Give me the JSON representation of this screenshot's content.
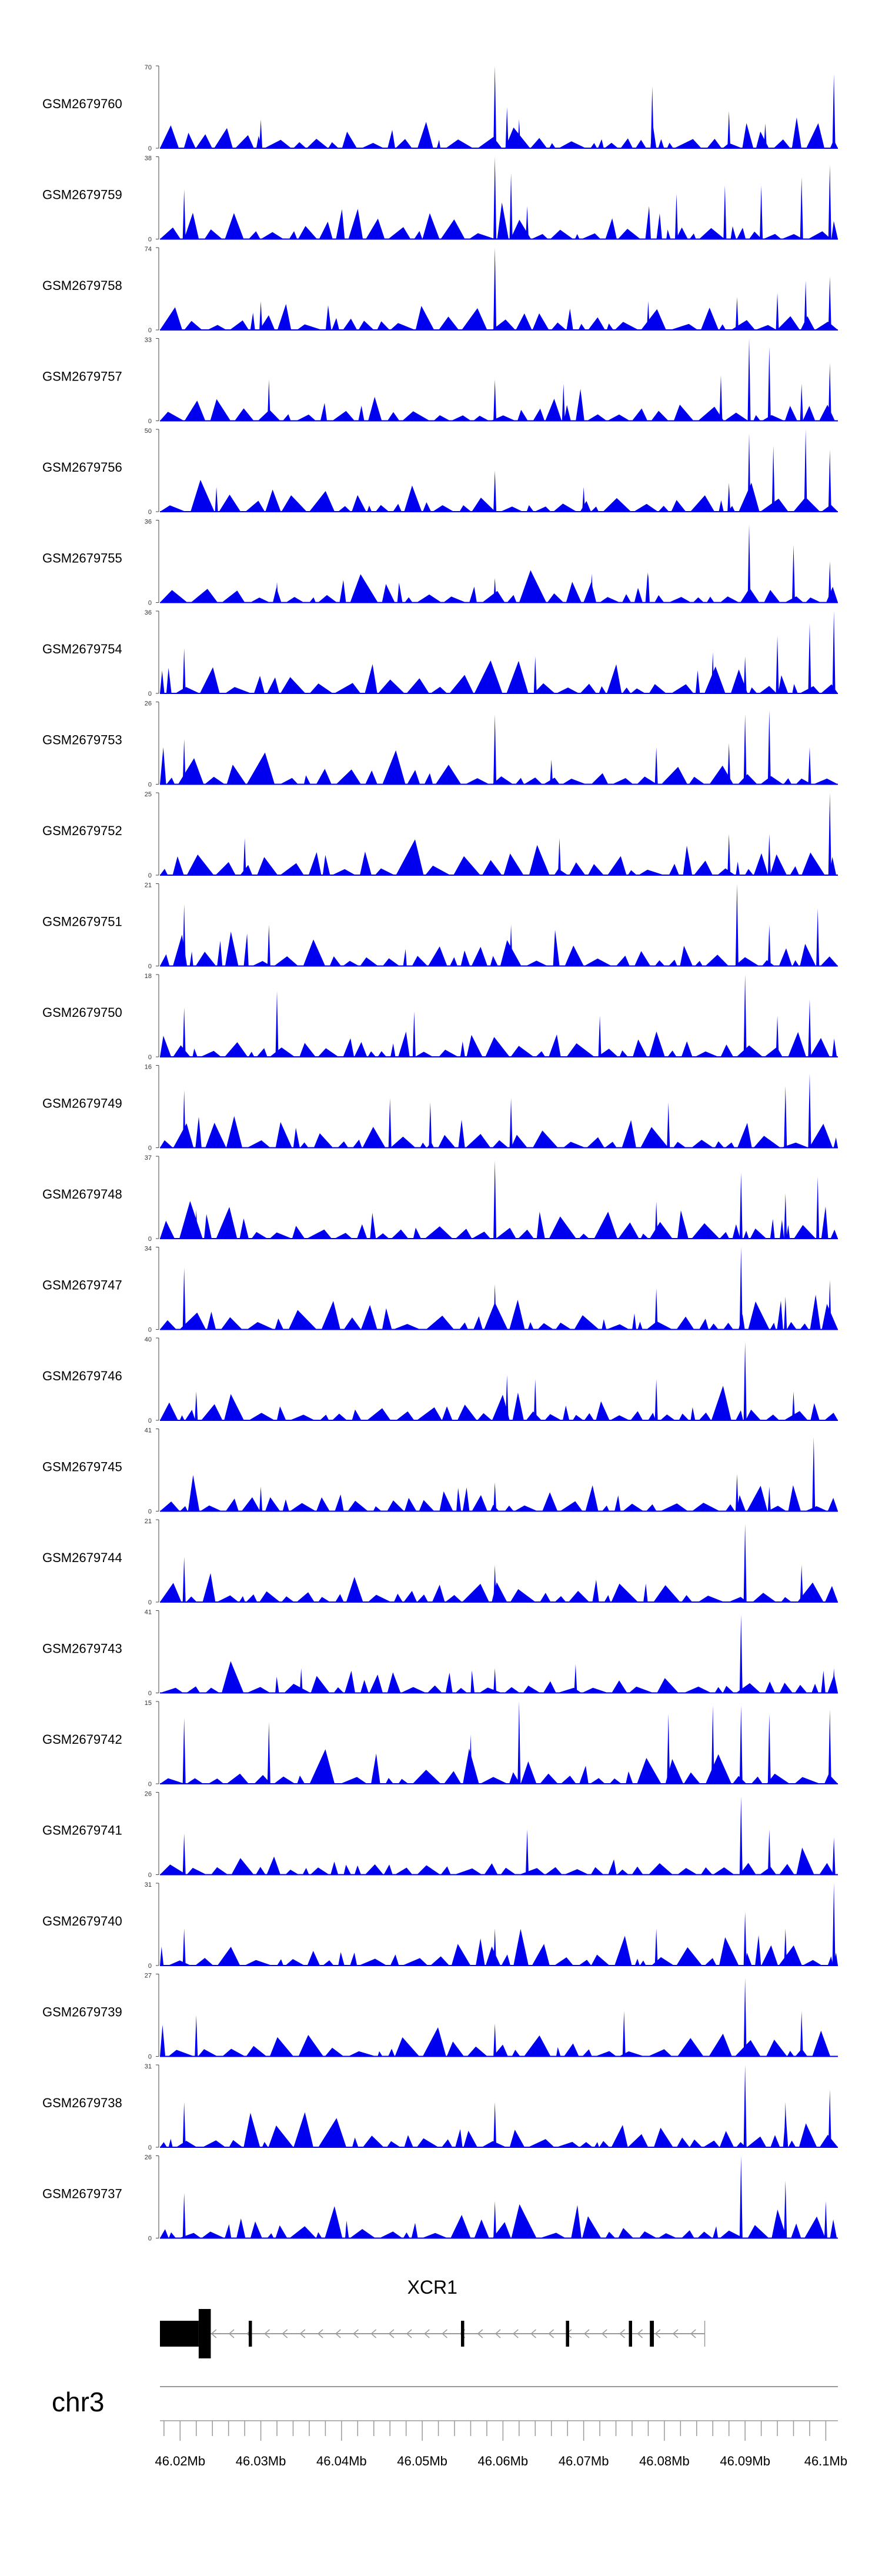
{
  "chart_data": {
    "type": "area",
    "chromosome": "chr3",
    "xlim": [
      46017500,
      46101500
    ],
    "x_ticks": [
      46020000,
      46030000,
      46040000,
      46050000,
      46060000,
      46070000,
      46080000,
      46090000,
      46100000
    ],
    "x_tick_labels": [
      "46.02Mb",
      "46.03Mb",
      "46.04Mb",
      "46.05Mb",
      "46.06Mb",
      "46.07Mb",
      "46.08Mb",
      "46.09Mb",
      "46.1Mb"
    ],
    "tracks": [
      {
        "name": "GSM2679760",
        "ymax": "70",
        "ymin": "0",
        "peak_y": 70,
        "peaks": [
          [
            46030000,
            0.35
          ],
          [
            46059000,
            1.0
          ],
          [
            46060500,
            0.5
          ],
          [
            46062000,
            0.35
          ],
          [
            46078500,
            0.75
          ],
          [
            46088000,
            0.45
          ],
          [
            46092500,
            0.3
          ],
          [
            46096500,
            0.3
          ],
          [
            46101000,
            0.9
          ]
        ]
      },
      {
        "name": "GSM2679759",
        "ymax": "38",
        "ymin": "0",
        "peak_y": 38,
        "peaks": [
          [
            46020500,
            0.6
          ],
          [
            46059000,
            1.0
          ],
          [
            46061000,
            0.8
          ],
          [
            46063000,
            0.4
          ],
          [
            46081500,
            0.55
          ],
          [
            46087500,
            0.65
          ],
          [
            46092000,
            0.65
          ],
          [
            46097000,
            0.75
          ],
          [
            46100500,
            0.9
          ]
        ]
      },
      {
        "name": "GSM2679758",
        "ymax": "74",
        "ymin": "0",
        "peak_y": 74,
        "peaks": [
          [
            46030000,
            0.35
          ],
          [
            46059000,
            1.0
          ],
          [
            46078000,
            0.35
          ],
          [
            46089000,
            0.4
          ],
          [
            46094000,
            0.45
          ],
          [
            46097500,
            0.6
          ],
          [
            46100500,
            0.65
          ]
        ]
      },
      {
        "name": "GSM2679757",
        "ymax": "33",
        "ymin": "0",
        "peak_y": 33,
        "peaks": [
          [
            46031000,
            0.5
          ],
          [
            46059000,
            0.5
          ],
          [
            46067500,
            0.45
          ],
          [
            46087000,
            0.55
          ],
          [
            46090500,
            1.0
          ],
          [
            46093000,
            0.9
          ],
          [
            46097000,
            0.45
          ],
          [
            46100500,
            0.7
          ]
        ]
      },
      {
        "name": "GSM2679756",
        "ymax": "50",
        "ymin": "0",
        "peak_y": 50,
        "peaks": [
          [
            46024500,
            0.3
          ],
          [
            46059000,
            0.5
          ],
          [
            46070000,
            0.3
          ],
          [
            46088000,
            0.35
          ],
          [
            46090500,
            0.95
          ],
          [
            46093500,
            0.8
          ],
          [
            46097500,
            1.0
          ],
          [
            46100500,
            0.75
          ]
        ]
      },
      {
        "name": "GSM2679755",
        "ymax": "36",
        "ymin": "0",
        "peak_y": 36,
        "peaks": [
          [
            46032000,
            0.25
          ],
          [
            46059000,
            0.3
          ],
          [
            46071000,
            0.35
          ],
          [
            46078000,
            0.35
          ],
          [
            46090500,
            0.95
          ],
          [
            46096000,
            0.7
          ],
          [
            46100500,
            0.5
          ]
        ]
      },
      {
        "name": "GSM2679754",
        "ymax": "36",
        "ymin": "0",
        "peak_y": 36,
        "peaks": [
          [
            46020500,
            0.55
          ],
          [
            46064000,
            0.45
          ],
          [
            46086000,
            0.5
          ],
          [
            46090000,
            0.45
          ],
          [
            46094000,
            0.7
          ],
          [
            46098000,
            0.85
          ],
          [
            46101000,
            1.0
          ]
        ]
      },
      {
        "name": "GSM2679753",
        "ymax": "26",
        "ymin": "0",
        "peak_y": 26,
        "peaks": [
          [
            46020500,
            0.55
          ],
          [
            46059000,
            0.85
          ],
          [
            46066000,
            0.3
          ],
          [
            46079000,
            0.45
          ],
          [
            46088000,
            0.5
          ],
          [
            46090000,
            0.85
          ],
          [
            46093000,
            0.9
          ],
          [
            46098000,
            0.45
          ]
        ]
      },
      {
        "name": "GSM2679752",
        "ymax": "25",
        "ymin": "0",
        "peak_y": 25,
        "peaks": [
          [
            46028000,
            0.45
          ],
          [
            46067000,
            0.45
          ],
          [
            46088000,
            0.5
          ],
          [
            46093000,
            0.5
          ],
          [
            46100500,
            1.0
          ]
        ]
      },
      {
        "name": "GSM2679751",
        "ymax": "21",
        "ymin": "0",
        "peak_y": 21,
        "peaks": [
          [
            46020500,
            0.75
          ],
          [
            46031000,
            0.5
          ],
          [
            46061000,
            0.5
          ],
          [
            46089000,
            1.0
          ],
          [
            46093000,
            0.5
          ],
          [
            46099000,
            0.7
          ]
        ]
      },
      {
        "name": "GSM2679750",
        "ymax": "18",
        "ymin": "0",
        "peak_y": 18,
        "peaks": [
          [
            46020500,
            0.6
          ],
          [
            46032000,
            0.8
          ],
          [
            46049000,
            0.55
          ],
          [
            46072000,
            0.5
          ],
          [
            46090000,
            1.0
          ],
          [
            46094000,
            0.5
          ],
          [
            46098000,
            0.7
          ]
        ]
      },
      {
        "name": "GSM2679749",
        "ymax": "16",
        "ymin": "0",
        "peak_y": 16,
        "peaks": [
          [
            46020500,
            0.7
          ],
          [
            46046000,
            0.6
          ],
          [
            46051000,
            0.55
          ],
          [
            46061000,
            0.6
          ],
          [
            46080500,
            0.55
          ],
          [
            46095000,
            0.75
          ],
          [
            46098000,
            0.9
          ]
        ]
      },
      {
        "name": "GSM2679748",
        "ymax": "37",
        "ymin": "0",
        "peak_y": 37,
        "peaks": [
          [
            46022000,
            0.35
          ],
          [
            46059000,
            0.95
          ],
          [
            46079000,
            0.45
          ],
          [
            46089500,
            0.8
          ],
          [
            46095000,
            0.55
          ],
          [
            46099000,
            0.75
          ]
        ]
      },
      {
        "name": "GSM2679747",
        "ymax": "34",
        "ymin": "0",
        "peak_y": 34,
        "peaks": [
          [
            46020500,
            0.75
          ],
          [
            46059000,
            0.55
          ],
          [
            46079000,
            0.5
          ],
          [
            46089500,
            1.0
          ],
          [
            46095000,
            0.4
          ],
          [
            46100500,
            0.6
          ]
        ]
      },
      {
        "name": "GSM2679746",
        "ymax": "40",
        "ymin": "0",
        "peak_y": 40,
        "peaks": [
          [
            46022000,
            0.35
          ],
          [
            46060500,
            0.55
          ],
          [
            46064000,
            0.5
          ],
          [
            46079000,
            0.5
          ],
          [
            46090000,
            0.95
          ],
          [
            46096000,
            0.35
          ]
        ]
      },
      {
        "name": "GSM2679745",
        "ymax": "41",
        "ymin": "0",
        "peak_y": 41,
        "peaks": [
          [
            46030000,
            0.3
          ],
          [
            46059000,
            0.35
          ],
          [
            46089000,
            0.45
          ],
          [
            46093000,
            0.3
          ],
          [
            46098500,
            0.9
          ]
        ]
      },
      {
        "name": "GSM2679744",
        "ymax": "21",
        "ymin": "0",
        "peak_y": 21,
        "peaks": [
          [
            46020500,
            0.55
          ],
          [
            46059000,
            0.45
          ],
          [
            46090000,
            0.95
          ],
          [
            46097000,
            0.45
          ]
        ]
      },
      {
        "name": "GSM2679743",
        "ymax": "41",
        "ymin": "0",
        "peak_y": 41,
        "peaks": [
          [
            46035000,
            0.3
          ],
          [
            46059000,
            0.3
          ],
          [
            46069000,
            0.35
          ],
          [
            46089500,
            0.95
          ],
          [
            46101000,
            0.3
          ]
        ]
      },
      {
        "name": "GSM2679742",
        "ymax": "15",
        "ymin": "0",
        "peak_y": 15,
        "peaks": [
          [
            46020500,
            0.8
          ],
          [
            46031000,
            0.75
          ],
          [
            46056000,
            0.6
          ],
          [
            46062000,
            1.0
          ],
          [
            46080500,
            0.85
          ],
          [
            46086000,
            0.95
          ],
          [
            46089500,
            0.95
          ],
          [
            46093000,
            0.85
          ],
          [
            46100500,
            0.9
          ]
        ]
      },
      {
        "name": "GSM2679741",
        "ymax": "26",
        "ymin": "0",
        "peak_y": 26,
        "peaks": [
          [
            46020500,
            0.5
          ],
          [
            46063000,
            0.55
          ],
          [
            46089500,
            0.95
          ],
          [
            46093000,
            0.55
          ],
          [
            46101000,
            0.45
          ]
        ]
      },
      {
        "name": "GSM2679740",
        "ymax": "31",
        "ymin": "0",
        "peak_y": 31,
        "peaks": [
          [
            46020500,
            0.45
          ],
          [
            46059000,
            0.45
          ],
          [
            46079000,
            0.45
          ],
          [
            46090000,
            0.65
          ],
          [
            46095000,
            0.45
          ],
          [
            46101000,
            1.0
          ]
        ]
      },
      {
        "name": "GSM2679739",
        "ymax": "27",
        "ymin": "0",
        "peak_y": 27,
        "peaks": [
          [
            46022000,
            0.5
          ],
          [
            46059000,
            0.4
          ],
          [
            46075000,
            0.55
          ],
          [
            46090000,
            0.95
          ],
          [
            46097000,
            0.55
          ]
        ]
      },
      {
        "name": "GSM2679738",
        "ymax": "31",
        "ymin": "0",
        "peak_y": 31,
        "peaks": [
          [
            46020500,
            0.55
          ],
          [
            46059000,
            0.55
          ],
          [
            46090000,
            1.0
          ],
          [
            46095000,
            0.55
          ],
          [
            46100500,
            0.7
          ]
        ]
      },
      {
        "name": "GSM2679737",
        "ymax": "26",
        "ymin": "0",
        "peak_y": 26,
        "peaks": [
          [
            46020500,
            0.55
          ],
          [
            46059000,
            0.45
          ],
          [
            46089500,
            1.0
          ],
          [
            46095000,
            0.7
          ],
          [
            46100000,
            0.45
          ]
        ]
      }
    ],
    "gene": {
      "name": "XCR1",
      "start": 46017500,
      "end": 46085000,
      "exons": [
        [
          46017500,
          46022300
        ],
        [
          46022300,
          46023800
        ],
        [
          46028500,
          46028900
        ],
        [
          46054800,
          46055200
        ],
        [
          46067800,
          46068200
        ],
        [
          46075600,
          46076000
        ],
        [
          46078200,
          46078700
        ]
      ],
      "strand": "-"
    }
  }
}
